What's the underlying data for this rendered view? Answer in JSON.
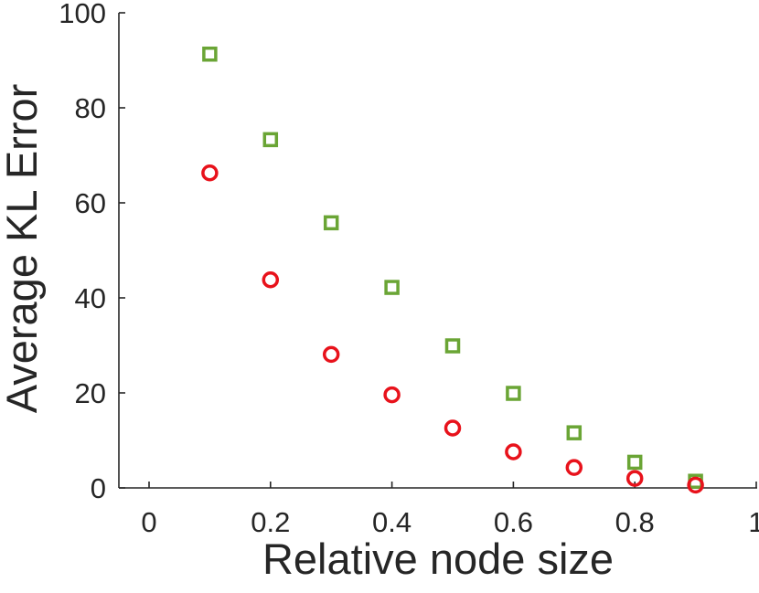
{
  "chart_data": {
    "type": "scatter",
    "title": "",
    "xlabel": "Relative node size",
    "ylabel": "Average KL Error",
    "xlim": [
      0,
      1
    ],
    "ylim": [
      0,
      100
    ],
    "xticks": [
      0,
      0.2,
      0.4,
      0.6,
      0.8,
      1
    ],
    "xtick_labels": [
      "0",
      "0.2",
      "0.4",
      "0.6",
      "0.8",
      "1"
    ],
    "yticks": [
      0,
      20,
      40,
      60,
      80,
      100
    ],
    "ytick_labels": [
      "0",
      "20",
      "40",
      "60",
      "80",
      "100"
    ],
    "grid": false,
    "legend": "none",
    "series": [
      {
        "marker": "square",
        "color": "#6aa535",
        "x": [
          0.1,
          0.2,
          0.3,
          0.4,
          0.5,
          0.6,
          0.7,
          0.8,
          0.9
        ],
        "y": [
          91.3,
          73.3,
          55.8,
          42.2,
          29.9,
          19.9,
          11.6,
          5.4,
          1.4
        ]
      },
      {
        "marker": "circle",
        "color": "#e8121b",
        "x": [
          0.1,
          0.2,
          0.3,
          0.4,
          0.5,
          0.6,
          0.7,
          0.8,
          0.9
        ],
        "y": [
          66.3,
          43.8,
          28.1,
          19.6,
          12.6,
          7.6,
          4.3,
          2.0,
          0.6
        ]
      }
    ]
  }
}
